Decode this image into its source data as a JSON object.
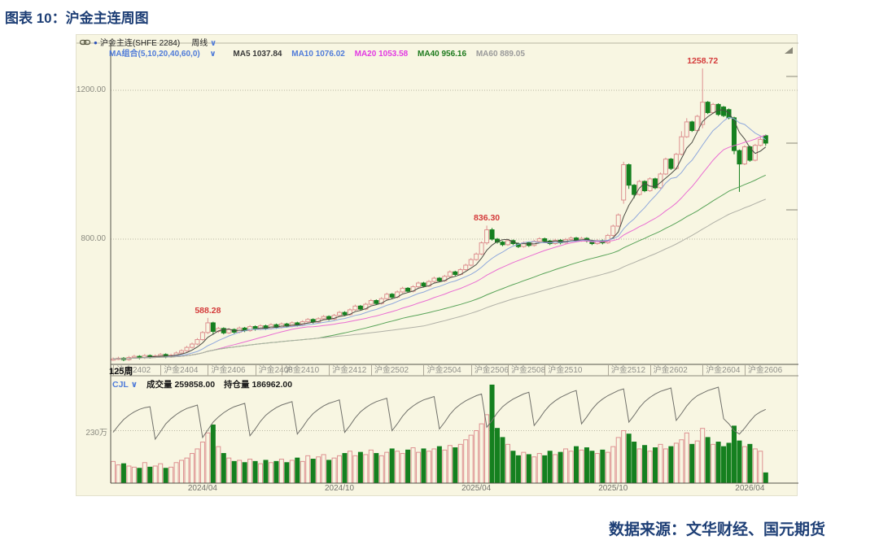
{
  "page": {
    "title": "图表 10：沪金主连周图",
    "source": "数据来源：文华财经、国元期货"
  },
  "chart": {
    "header": {
      "instrument": "沪金主连(SHFE 2284)",
      "period": "周线",
      "caret": "∨",
      "ma_group": "MA组合(5,10,20,40,60,0)",
      "ma_values": [
        {
          "text": "MA5 1037.84",
          "color": "#3a3a3a"
        },
        {
          "text": "MA10 1076.02",
          "color": "#4f7bd9"
        },
        {
          "text": "MA20 1053.58",
          "color": "#e23ae2"
        },
        {
          "text": "MA40 956.16",
          "color": "#1e7a1e"
        },
        {
          "text": "MA60 889.05",
          "color": "#9a9a9a"
        }
      ]
    },
    "cjl": {
      "name": "CJL",
      "caret": "∨",
      "vol_label": "成交量",
      "vol_value": "259858.00",
      "oi_label": "持仓量",
      "oi_value": "186962.00"
    },
    "bars_label": "125周"
  },
  "chart_data": {
    "type": "candlestick",
    "title": "沪金主连 周线 (SHFE 2284)",
    "price_axis": {
      "ticks": [
        {
          "label": "1200.00",
          "price": 1200
        },
        {
          "label": "800.00",
          "price": 800
        }
      ],
      "grid": "dotted"
    },
    "volume_axis": {
      "ticks": [
        {
          "label": "230万",
          "value": 230
        }
      ]
    },
    "annotations": [
      {
        "text": "1258.72",
        "bar": 112,
        "price": 1258.72
      },
      {
        "text": "836.30",
        "bar": 71,
        "price": 836.3
      },
      {
        "text": "588.28",
        "bar": 18,
        "price": 588.28
      }
    ],
    "contract_ticks": [
      {
        "label": "沪金2402",
        "bar": 0
      },
      {
        "label": "沪金2404",
        "bar": 9
      },
      {
        "label": "沪金2406",
        "bar": 18
      },
      {
        "label": "沪金2408",
        "bar": 27
      },
      {
        "label": "沪金2410",
        "bar": 32
      },
      {
        "label": "沪金2412",
        "bar": 41
      },
      {
        "label": "沪金2502",
        "bar": 49
      },
      {
        "label": "沪金2504",
        "bar": 59
      },
      {
        "label": "沪金2506",
        "bar": 68
      },
      {
        "label": "沪金2508",
        "bar": 75
      },
      {
        "label": "沪金2510",
        "bar": 82
      },
      {
        "label": "沪金2512",
        "bar": 94
      },
      {
        "label": "沪金2602",
        "bar": 102
      },
      {
        "label": "沪金2604",
        "bar": 112
      },
      {
        "label": "沪金2606",
        "bar": 120
      }
    ],
    "date_ticks": [
      {
        "label": "2024/04",
        "bar": 17
      },
      {
        "label": "2024/10",
        "bar": 43
      },
      {
        "label": "2025/04",
        "bar": 69
      },
      {
        "label": "2025/10",
        "bar": 95
      },
      {
        "label": "2026/04",
        "bar": 121
      }
    ],
    "ma_periods": [
      5,
      10,
      20,
      40,
      60
    ],
    "ma_colors": [
      "#4a4a42",
      "#8fa8dc",
      "#ea6ed2",
      "#58a358",
      "#b0b0a6"
    ],
    "colors": {
      "up_outline": "#dd9090",
      "down_fill": "#15801f",
      "oi_line": "#70706a",
      "annotation": "#d43a3a",
      "panel_bg": "#f8f6e2"
    },
    "candles": [
      [
        476,
        482,
        473,
        478
      ],
      [
        478,
        484,
        475,
        480
      ],
      [
        480,
        483,
        472,
        476
      ],
      [
        476,
        486,
        473,
        482
      ],
      [
        482,
        489,
        479,
        485
      ],
      [
        485,
        488,
        477,
        481
      ],
      [
        481,
        491,
        478,
        487
      ],
      [
        487,
        490,
        479,
        483
      ],
      [
        483,
        490,
        480,
        486
      ],
      [
        486,
        494,
        483,
        490
      ],
      [
        490,
        493,
        480,
        484
      ],
      [
        484,
        492,
        481,
        488
      ],
      [
        488,
        498,
        485,
        494
      ],
      [
        494,
        504,
        491,
        500
      ],
      [
        500,
        513,
        497,
        509
      ],
      [
        509,
        522,
        506,
        518
      ],
      [
        518,
        534,
        515,
        530
      ],
      [
        530,
        553,
        527,
        549
      ],
      [
        549,
        588.28,
        545,
        575
      ],
      [
        575,
        578,
        543,
        552
      ],
      [
        552,
        564,
        548,
        560
      ],
      [
        560,
        563,
        544,
        548
      ],
      [
        548,
        561,
        545,
        557
      ],
      [
        557,
        560,
        546,
        550
      ],
      [
        550,
        565,
        547,
        561
      ],
      [
        561,
        564,
        550,
        554
      ],
      [
        554,
        569,
        551,
        565
      ],
      [
        565,
        568,
        554,
        558
      ],
      [
        558,
        571,
        555,
        567
      ],
      [
        567,
        570,
        556,
        560
      ],
      [
        560,
        574,
        557,
        570
      ],
      [
        570,
        573,
        559,
        563
      ],
      [
        563,
        576,
        560,
        572
      ],
      [
        572,
        575,
        562,
        566
      ],
      [
        566,
        579,
        563,
        575
      ],
      [
        575,
        578,
        565,
        569
      ],
      [
        569,
        582,
        566,
        578
      ],
      [
        578,
        588,
        575,
        584
      ],
      [
        584,
        587,
        573,
        577
      ],
      [
        577,
        590,
        574,
        586
      ],
      [
        586,
        596,
        583,
        592
      ],
      [
        592,
        595,
        581,
        585
      ],
      [
        585,
        599,
        582,
        595
      ],
      [
        595,
        607,
        592,
        603
      ],
      [
        603,
        606,
        593,
        597
      ],
      [
        597,
        614,
        594,
        610
      ],
      [
        610,
        624,
        607,
        620
      ],
      [
        620,
        623,
        608,
        612
      ],
      [
        612,
        629,
        609,
        625
      ],
      [
        625,
        639,
        622,
        635
      ],
      [
        635,
        638,
        623,
        627
      ],
      [
        627,
        644,
        624,
        640
      ],
      [
        640,
        656,
        637,
        652
      ],
      [
        652,
        655,
        640,
        644
      ],
      [
        644,
        662,
        641,
        658
      ],
      [
        658,
        672,
        655,
        668
      ],
      [
        668,
        671,
        656,
        660
      ],
      [
        660,
        676,
        657,
        672
      ],
      [
        672,
        686,
        669,
        682
      ],
      [
        682,
        685,
        670,
        674
      ],
      [
        674,
        690,
        671,
        686
      ],
      [
        686,
        699,
        683,
        695
      ],
      [
        695,
        698,
        684,
        688
      ],
      [
        688,
        704,
        685,
        700
      ],
      [
        700,
        716,
        697,
        712
      ],
      [
        712,
        715,
        701,
        705
      ],
      [
        705,
        722,
        702,
        718
      ],
      [
        718,
        734,
        715,
        730
      ],
      [
        730,
        749,
        727,
        745
      ],
      [
        745,
        764,
        742,
        760
      ],
      [
        760,
        794,
        757,
        790
      ],
      [
        790,
        836.3,
        785,
        825
      ],
      [
        825,
        830,
        796,
        800
      ],
      [
        800,
        803,
        788,
        792
      ],
      [
        792,
        795,
        781,
        785
      ],
      [
        785,
        800,
        782,
        796
      ],
      [
        796,
        799,
        784,
        788
      ],
      [
        788,
        791,
        776,
        780
      ],
      [
        780,
        794,
        777,
        790
      ],
      [
        790,
        793,
        779,
        783
      ],
      [
        783,
        798,
        780,
        794
      ],
      [
        794,
        805,
        791,
        801
      ],
      [
        801,
        804,
        791,
        795
      ],
      [
        795,
        798,
        784,
        788
      ],
      [
        788,
        801,
        785,
        797
      ],
      [
        797,
        800,
        786,
        790
      ],
      [
        790,
        803,
        787,
        799
      ],
      [
        799,
        807,
        796,
        803
      ],
      [
        803,
        806,
        792,
        796
      ],
      [
        796,
        806,
        793,
        802
      ],
      [
        802,
        805,
        791,
        795
      ],
      [
        795,
        798,
        784,
        788
      ],
      [
        788,
        800,
        785,
        796
      ],
      [
        796,
        799,
        786,
        790
      ],
      [
        790,
        814,
        787,
        810
      ],
      [
        810,
        839,
        807,
        835
      ],
      [
        835,
        869,
        832,
        865
      ],
      [
        905,
        1008,
        895,
        1000
      ],
      [
        1000,
        1003,
        935,
        945
      ],
      [
        945,
        948,
        910,
        920
      ],
      [
        920,
        959,
        917,
        955
      ],
      [
        955,
        958,
        926,
        930
      ],
      [
        930,
        966,
        927,
        962
      ],
      [
        962,
        965,
        934,
        938
      ],
      [
        938,
        979,
        935,
        975
      ],
      [
        975,
        1019,
        972,
        1015
      ],
      [
        1015,
        1018,
        986,
        990
      ],
      [
        990,
        1032,
        987,
        1028
      ],
      [
        1028,
        1090,
        1025,
        1075
      ],
      [
        1075,
        1125,
        1072,
        1115
      ],
      [
        1115,
        1118,
        1088,
        1092
      ],
      [
        1092,
        1134,
        1089,
        1130
      ],
      [
        1108,
        1258.72,
        1098,
        1168
      ],
      [
        1168,
        1171,
        1136,
        1140
      ],
      [
        1140,
        1166,
        1137,
        1162
      ],
      [
        1162,
        1165,
        1131,
        1135
      ],
      [
        1155,
        1158,
        1128,
        1132
      ],
      [
        1148,
        1151,
        1122,
        1126
      ],
      [
        1126,
        1129,
        1028,
        1038
      ],
      [
        1038,
        1041,
        927,
        1002
      ],
      [
        1002,
        1052,
        999,
        1048
      ],
      [
        1048,
        1051,
        1008,
        1012
      ],
      [
        1012,
        1056,
        1009,
        1052
      ],
      [
        1052,
        1075,
        1049,
        1068
      ],
      [
        1078,
        1081,
        1051,
        1058
      ]
    ],
    "volumes": [
      95,
      80,
      85,
      75,
      70,
      65,
      90,
      70,
      75,
      85,
      65,
      70,
      90,
      100,
      110,
      130,
      150,
      180,
      220,
      255,
      160,
      130,
      110,
      95,
      100,
      90,
      105,
      95,
      85,
      100,
      90,
      95,
      105,
      90,
      100,
      110,
      95,
      120,
      105,
      115,
      125,
      100,
      110,
      120,
      130,
      140,
      120,
      135,
      125,
      145,
      130,
      120,
      135,
      150,
      140,
      130,
      145,
      155,
      135,
      150,
      140,
      150,
      160,
      145,
      165,
      155,
      170,
      190,
      210,
      230,
      260,
      300,
      430,
      240,
      200,
      170,
      140,
      120,
      135,
      125,
      115,
      130,
      120,
      140,
      125,
      135,
      150,
      140,
      160,
      145,
      155,
      140,
      130,
      145,
      135,
      160,
      200,
      230,
      215,
      180,
      150,
      165,
      140,
      155,
      170,
      150,
      160,
      175,
      190,
      220,
      170,
      185,
      240,
      200,
      170,
      180,
      160,
      175,
      250,
      185,
      160,
      170,
      150,
      140,
      45
    ],
    "open_interest": [
      16.0,
      16.8,
      17.5,
      18.0,
      18.4,
      18.7,
      18.9,
      19.0,
      15.2,
      16.1,
      17.0,
      17.6,
      18.1,
      18.5,
      18.8,
      19.0,
      19.2,
      15.4,
      16.3,
      17.2,
      17.8,
      18.3,
      18.7,
      19.0,
      19.2,
      19.4,
      15.6,
      16.4,
      17.3,
      18.0,
      18.5,
      18.9,
      19.2,
      19.4,
      19.6,
      15.8,
      16.6,
      17.5,
      18.2,
      18.7,
      19.1,
      19.4,
      19.6,
      19.8,
      16.0,
      16.8,
      17.7,
      18.4,
      18.9,
      19.3,
      19.6,
      19.8,
      20.0,
      16.2,
      17.0,
      17.9,
      18.6,
      19.1,
      19.5,
      19.8,
      20.0,
      20.2,
      16.4,
      17.2,
      18.1,
      18.8,
      19.3,
      19.7,
      20.0,
      20.3,
      20.5,
      16.6,
      17.4,
      18.3,
      19.0,
      19.5,
      19.9,
      20.2,
      20.5,
      20.7,
      16.8,
      17.6,
      18.5,
      19.2,
      19.7,
      20.1,
      20.4,
      20.7,
      20.9,
      17.0,
      17.8,
      18.7,
      19.4,
      19.9,
      20.3,
      20.6,
      20.9,
      21.1,
      17.2,
      18.0,
      18.9,
      19.6,
      20.1,
      20.5,
      20.8,
      21.0,
      21.2,
      17.4,
      18.2,
      19.1,
      19.8,
      20.3,
      20.6,
      20.9,
      21.1,
      21.3,
      17.6,
      17.0,
      16.2,
      15.8,
      16.5,
      17.3,
      18.0,
      18.4,
      18.7
    ]
  }
}
